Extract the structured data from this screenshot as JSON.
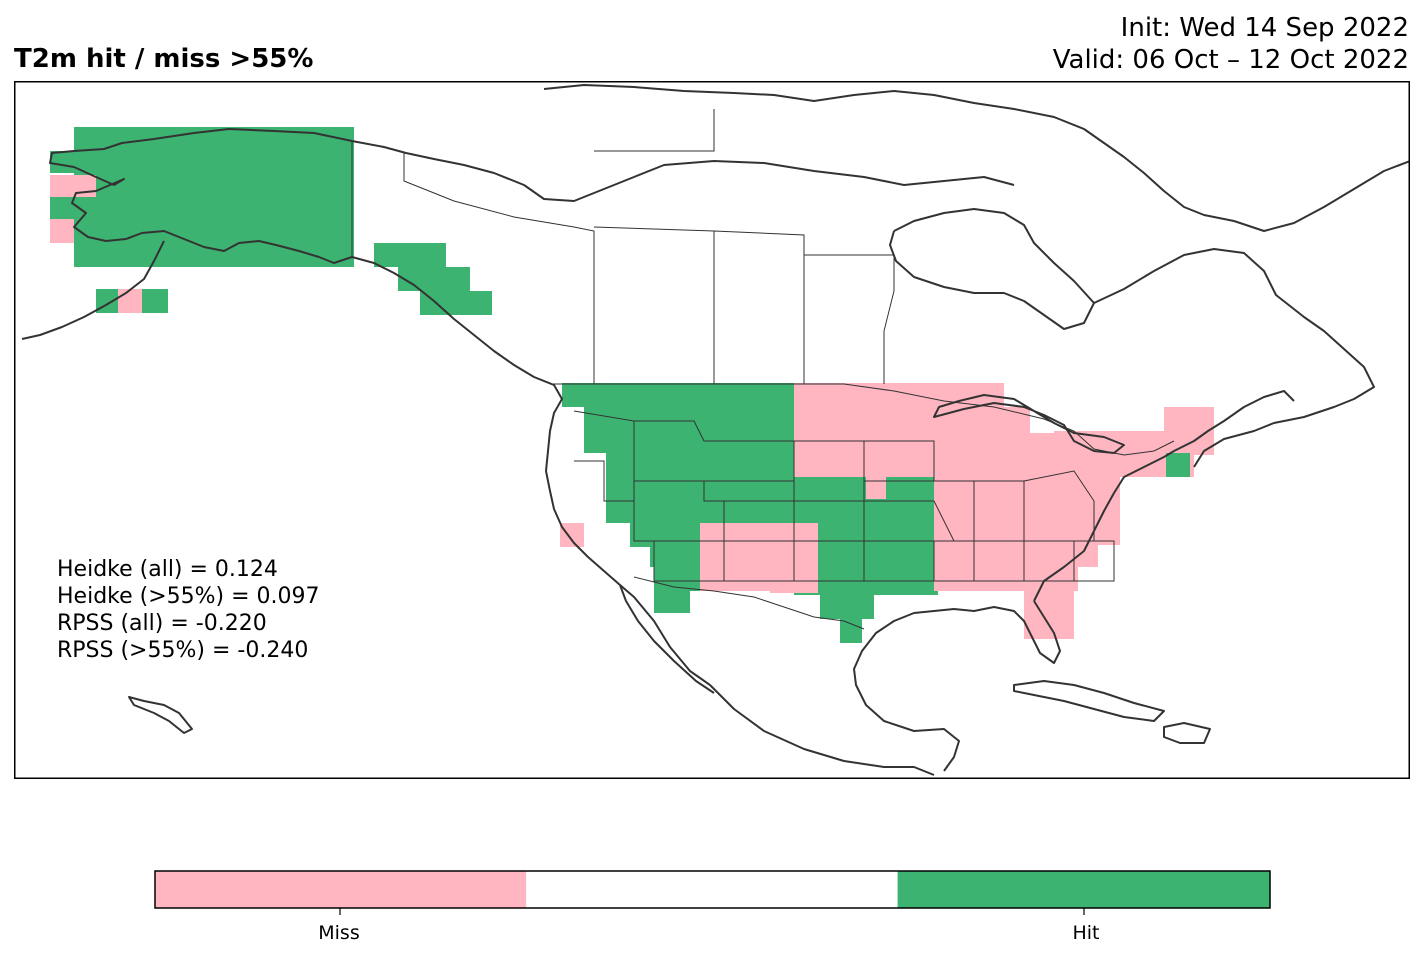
{
  "title": "T2m hit / miss  >55%",
  "init": "Init: Wed 14 Sep 2022",
  "valid": "Valid: 06 Oct – 12 Oct 2022",
  "stats": [
    "Heidke (all) = 0.124",
    "Heidke (>55%) = 0.097",
    "RPSS (all) = -0.220",
    "RPSS (>55%) = -0.240"
  ],
  "colors": {
    "miss": "#ffb6c1",
    "hit": "#3cb371",
    "neutral": "#ffffff",
    "outline": "#333333"
  },
  "colorbar": {
    "labels": [
      "Miss",
      "Hit"
    ]
  },
  "legend_levels": [
    "miss",
    "neutral",
    "hit"
  ]
}
